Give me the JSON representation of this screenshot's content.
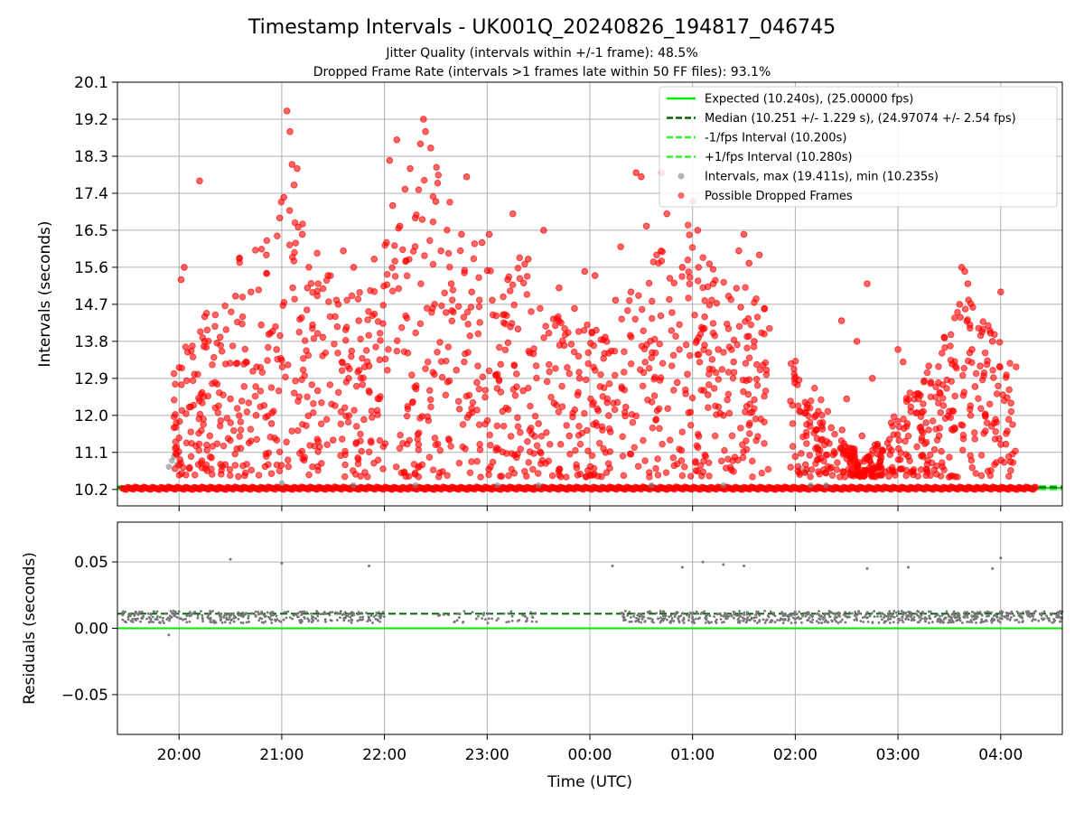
{
  "chart_data": [
    {
      "type": "scatter",
      "title": "Timestamp Intervals - UK001Q_20240826_194817_046745",
      "subtitle_1": "Jitter Quality (intervals within +/-1 frame): 48.5%",
      "subtitle_2": "Dropped Frame Rate (intervals >1 frames late within 50 FF files): 93.1%",
      "ylabel": "Intervals (seconds)",
      "ylim": [
        9.8,
        20.1
      ],
      "yticks": [
        "10.2",
        "11.1",
        "12.0",
        "12.9",
        "13.8",
        "14.7",
        "15.6",
        "16.5",
        "17.4",
        "18.3",
        "19.2",
        "20.1"
      ],
      "xlim_hours_since_19": [
        0.4,
        9.6
      ],
      "grid": true,
      "legend_position": "top-right",
      "legend": [
        {
          "label": "Expected (10.240s), (25.00000 fps)",
          "style": "solid",
          "color": "#00ee00"
        },
        {
          "label": "Median (10.251 +/- 1.229 s), (24.97074 +/- 2.54 fps)",
          "style": "dashed",
          "color": "#006400"
        },
        {
          "label": "-1/fps Interval (10.200s)",
          "style": "dashed",
          "color": "#33ee33"
        },
        {
          "label": "+1/fps Interval (10.280s)",
          "style": "dashed",
          "color": "#33ee33"
        },
        {
          "label": "Intervals, max (19.411s), min (10.235s)",
          "style": "marker",
          "color": "#808080"
        },
        {
          "label": "Possible Dropped Frames",
          "style": "marker",
          "color": "#ff0000"
        }
      ],
      "lines": {
        "expected": 10.24,
        "median": 10.251,
        "minus_fps": 10.2,
        "plus_fps": 10.28
      },
      "series": [
        {
          "name": "Intervals, max (19.411s), min (10.235s)",
          "color": "#808080",
          "points": [
            [
              19.9,
              10.75
            ],
            [
              19.93,
              10.9
            ],
            [
              19.95,
              11.0
            ],
            [
              19.98,
              10.8
            ],
            [
              21.0,
              10.35
            ],
            [
              21.7,
              10.3
            ],
            [
              22.3,
              10.3
            ],
            [
              23.1,
              10.3
            ],
            [
              23.5,
              10.3
            ],
            [
              0.6,
              10.3
            ],
            [
              1.3,
              10.3
            ],
            [
              2.05,
              10.7
            ],
            [
              2.1,
              10.6
            ],
            [
              2.15,
              10.3
            ],
            [
              2.3,
              10.3
            ]
          ]
        },
        {
          "name": "Possible Dropped Frames",
          "color": "#ff0000",
          "points": [
            [
              20.02,
              15.3
            ],
            [
              20.05,
              15.6
            ],
            [
              20.1,
              12.2
            ],
            [
              20.15,
              13.0
            ],
            [
              20.2,
              17.7
            ],
            [
              20.25,
              14.4
            ],
            [
              20.3,
              11.5
            ],
            [
              20.35,
              12.8
            ],
            [
              20.4,
              13.9
            ],
            [
              20.45,
              10.8
            ],
            [
              20.5,
              12.4
            ],
            [
              20.55,
              14.9
            ],
            [
              20.6,
              11.2
            ],
            [
              20.65,
              13.3
            ],
            [
              20.7,
              15.0
            ],
            [
              20.75,
              12.0
            ],
            [
              20.8,
              14.2
            ],
            [
              20.85,
              15.9
            ],
            [
              20.9,
              11.8
            ],
            [
              20.95,
              13.6
            ],
            [
              20.98,
              16.8
            ],
            [
              21.02,
              17.3
            ],
            [
              21.05,
              19.4
            ],
            [
              21.08,
              18.9
            ],
            [
              21.1,
              18.1
            ],
            [
              21.12,
              17.6
            ],
            [
              21.15,
              18.0
            ],
            [
              21.2,
              16.4
            ],
            [
              21.25,
              15.1
            ],
            [
              21.3,
              14.2
            ],
            [
              21.35,
              12.6
            ],
            [
              21.4,
              13.9
            ],
            [
              21.45,
              15.4
            ],
            [
              21.5,
              11.4
            ],
            [
              21.55,
              14.7
            ],
            [
              21.6,
              16.0
            ],
            [
              21.65,
              12.9
            ],
            [
              21.7,
              15.6
            ],
            [
              21.75,
              14.3
            ],
            [
              21.8,
              11.9
            ],
            [
              21.85,
              13.2
            ],
            [
              21.9,
              15.8
            ],
            [
              21.95,
              12.4
            ],
            [
              22.02,
              16.2
            ],
            [
              22.05,
              18.2
            ],
            [
              22.08,
              17.1
            ],
            [
              22.12,
              18.7
            ],
            [
              22.15,
              16.6
            ],
            [
              22.2,
              17.5
            ],
            [
              22.25,
              18.0
            ],
            [
              22.3,
              16.8
            ],
            [
              22.35,
              18.6
            ],
            [
              22.38,
              19.2
            ],
            [
              22.4,
              18.9
            ],
            [
              22.45,
              18.5
            ],
            [
              22.5,
              17.2
            ],
            [
              22.55,
              16.0
            ],
            [
              22.6,
              14.5
            ],
            [
              22.65,
              15.2
            ],
            [
              22.7,
              13.1
            ],
            [
              22.75,
              16.4
            ],
            [
              22.8,
              17.8
            ],
            [
              22.85,
              15.0
            ],
            [
              22.9,
              12.8
            ],
            [
              22.95,
              16.2
            ],
            [
              23.02,
              16.4
            ],
            [
              23.05,
              14.8
            ],
            [
              23.1,
              13.0
            ],
            [
              23.15,
              12.1
            ],
            [
              23.2,
              15.3
            ],
            [
              23.25,
              16.9
            ],
            [
              23.3,
              14.1
            ],
            [
              23.35,
              12.6
            ],
            [
              23.4,
              15.8
            ],
            [
              23.45,
              13.5
            ],
            [
              23.5,
              11.8
            ],
            [
              23.55,
              16.5
            ],
            [
              23.6,
              14.0
            ],
            [
              23.65,
              12.3
            ],
            [
              23.7,
              15.1
            ],
            [
              23.75,
              13.7
            ],
            [
              23.8,
              11.5
            ],
            [
              23.85,
              14.6
            ],
            [
              23.9,
              12.9
            ],
            [
              23.95,
              15.5
            ],
            [
              0.02,
              14.0
            ],
            [
              0.05,
              15.4
            ],
            [
              0.1,
              12.7
            ],
            [
              0.15,
              13.9
            ],
            [
              0.2,
              11.6
            ],
            [
              0.25,
              14.8
            ],
            [
              0.3,
              16.1
            ],
            [
              0.35,
              12.2
            ],
            [
              0.4,
              15.0
            ],
            [
              0.45,
              17.9
            ],
            [
              0.5,
              17.8
            ],
            [
              0.55,
              16.6
            ],
            [
              0.6,
              13.4
            ],
            [
              0.65,
              15.9
            ],
            [
              0.7,
              17.9
            ],
            [
              0.75,
              16.9
            ],
            [
              0.8,
              14.5
            ],
            [
              0.85,
              12.8
            ],
            [
              0.9,
              15.6
            ],
            [
              0.95,
              13.0
            ],
            [
              1.0,
              17.2
            ],
            [
              1.05,
              16.5
            ],
            [
              1.1,
              14.1
            ],
            [
              1.15,
              12.5
            ],
            [
              1.2,
              15.2
            ],
            [
              1.25,
              13.6
            ],
            [
              1.3,
              12.0
            ],
            [
              1.35,
              14.9
            ],
            [
              1.4,
              13.3
            ],
            [
              1.45,
              16.0
            ],
            [
              1.5,
              16.4
            ],
            [
              1.55,
              15.7
            ],
            [
              1.6,
              13.8
            ],
            [
              1.65,
              15.9
            ],
            [
              1.7,
              14.6
            ],
            [
              1.72,
              13.1
            ],
            [
              2.0,
              11.0
            ],
            [
              2.1,
              10.8
            ],
            [
              2.2,
              12.0
            ],
            [
              2.25,
              11.4
            ],
            [
              2.3,
              10.6
            ],
            [
              2.35,
              11.7
            ],
            [
              2.45,
              14.3
            ],
            [
              2.5,
              12.4
            ],
            [
              2.55,
              11.2
            ],
            [
              2.6,
              13.8
            ],
            [
              2.65,
              11.5
            ],
            [
              2.7,
              15.2
            ],
            [
              2.75,
              12.9
            ],
            [
              2.8,
              11.3
            ],
            [
              3.0,
              13.6
            ],
            [
              3.05,
              13.3
            ],
            [
              3.1,
              11.0
            ],
            [
              3.2,
              12.4
            ],
            [
              3.3,
              13.2
            ],
            [
              3.4,
              11.5
            ],
            [
              3.45,
              13.9
            ],
            [
              3.5,
              12.1
            ],
            [
              3.55,
              11.7
            ],
            [
              3.6,
              14.7
            ],
            [
              3.62,
              15.6
            ],
            [
              3.65,
              15.5
            ],
            [
              3.68,
              15.2
            ],
            [
              3.7,
              14.2
            ],
            [
              3.72,
              13.6
            ],
            [
              3.75,
              12.7
            ],
            [
              3.8,
              13.2
            ],
            [
              3.85,
              12.0
            ],
            [
              3.9,
              14.0
            ],
            [
              3.92,
              13.8
            ],
            [
              3.95,
              11.9
            ],
            [
              4.0,
              15.0
            ],
            [
              4.02,
              12.5
            ],
            [
              4.05,
              11.3
            ],
            [
              4.1,
              12.3
            ]
          ]
        }
      ]
    },
    {
      "type": "scatter",
      "xlabel": "Time (UTC)",
      "ylabel": "Residuals (seconds)",
      "ylim": [
        -0.08,
        0.08
      ],
      "yticks": [
        "0.05",
        "0.00",
        "−0.05"
      ],
      "xticks": [
        "20:00",
        "21:00",
        "22:00",
        "23:00",
        "00:00",
        "01:00",
        "02:00",
        "03:00",
        "04:00"
      ],
      "grid": true,
      "lines": {
        "expected": 0.0,
        "median": 0.011
      },
      "outliers": [
        [
          19.9,
          -0.005
        ],
        [
          20.5,
          0.052
        ],
        [
          21.0,
          0.049
        ],
        [
          21.85,
          0.047
        ],
        [
          0.22,
          0.047
        ],
        [
          0.9,
          0.046
        ],
        [
          1.1,
          0.05
        ],
        [
          1.3,
          0.048
        ],
        [
          1.5,
          0.047
        ],
        [
          2.7,
          0.045
        ],
        [
          3.1,
          0.046
        ],
        [
          3.92,
          0.045
        ],
        [
          4.0,
          0.053
        ]
      ]
    }
  ]
}
